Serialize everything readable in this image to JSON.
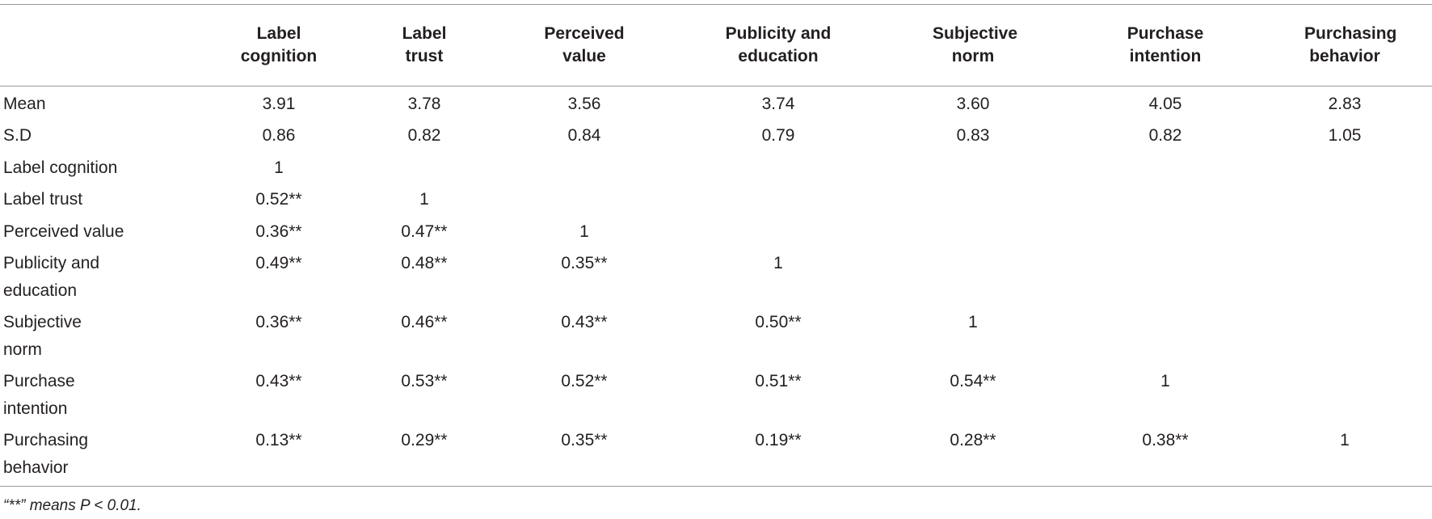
{
  "table": {
    "columns": [
      "Label cognition",
      "Label trust",
      "Perceived value",
      "Publicity and education",
      "Subjective norm",
      "Purchase intention",
      "Purchasing behavior"
    ],
    "rows": [
      {
        "label": "Mean",
        "cells": [
          "3.91",
          "3.78",
          "3.56",
          "3.74",
          "3.60",
          "4.05",
          "2.83"
        ]
      },
      {
        "label": "S.D",
        "cells": [
          "0.86",
          "0.82",
          "0.84",
          "0.79",
          "0.83",
          "0.82",
          "1.05"
        ]
      },
      {
        "label": "Label cognition",
        "cells": [
          "1"
        ]
      },
      {
        "label": "Label trust",
        "cells": [
          "0.52**",
          "1"
        ]
      },
      {
        "label": "Perceived value",
        "cells": [
          "0.36**",
          "0.47**",
          "1"
        ]
      },
      {
        "label": "Publicity and education",
        "cells": [
          "0.49**",
          "0.48**",
          "0.35**",
          "1"
        ]
      },
      {
        "label": "Subjective norm",
        "cells": [
          "0.36**",
          "0.46**",
          "0.43**",
          "0.50**",
          "1"
        ]
      },
      {
        "label": "Purchase intention",
        "cells": [
          "0.43**",
          "0.53**",
          "0.52**",
          "0.51**",
          "0.54**",
          "1"
        ]
      },
      {
        "label": "Purchasing behavior",
        "cells": [
          "0.13**",
          "0.29**",
          "0.35**",
          "0.19**",
          "0.28**",
          "0.38**",
          "1"
        ]
      }
    ],
    "footnote": "“**” means P < 0.01."
  }
}
